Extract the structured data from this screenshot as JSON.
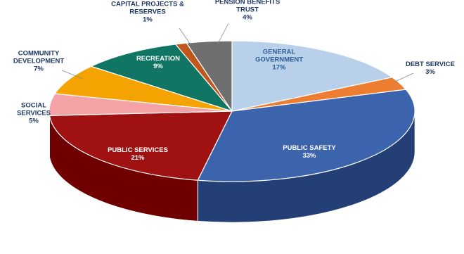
{
  "chart_data": {
    "type": "pie",
    "style": "3d",
    "slices": [
      {
        "name": "GENERAL GOVERNMENT",
        "value": 17,
        "label_lines": [
          "GENERAL",
          "GOVERNMENT"
        ],
        "value_label": "17%",
        "color": "#b8d0ea",
        "side_color": "#8aa2bd",
        "label_color": "#2f5f93"
      },
      {
        "name": "DEBT SERVICE",
        "value": 3,
        "label_lines": [
          "DEBT SERVICE"
        ],
        "value_label": "3%",
        "color": "#ed7d31",
        "side_color": "#b55e22",
        "label_color": "#1f3864"
      },
      {
        "name": "PUBLIC SAFETY",
        "value": 33,
        "label_lines": [
          "PUBLIC SAFETY"
        ],
        "value_label": "33%",
        "color": "#3c64ad",
        "side_color": "#233f75",
        "label_color": "#ffffff"
      },
      {
        "name": "PUBLIC SERVICES",
        "value": 21,
        "label_lines": [
          "PUBLIC SERVICES"
        ],
        "value_label": "21%",
        "color": "#a01212",
        "side_color": "#700000",
        "label_color": "#ffffff"
      },
      {
        "name": "SOCIAL SERVICES",
        "value": 5,
        "label_lines": [
          "SOCIAL",
          "SERVICES"
        ],
        "value_label": "5%",
        "color": "#f3a3a5",
        "side_color": "#c37678",
        "label_color": "#1f3864"
      },
      {
        "name": "COMMUNITY DEVELOPMENT",
        "value": 7,
        "label_lines": [
          "COMMUNITY",
          "DEVELOPMENT"
        ],
        "value_label": "7%",
        "color": "#f5a300",
        "side_color": "#c07f00",
        "label_color": "#1f3864"
      },
      {
        "name": "RECREATION",
        "value": 9,
        "label_lines": [
          "RECREATION"
        ],
        "value_label": "9%",
        "color": "#117564",
        "side_color": "#0b5145",
        "label_color": "#ffffff"
      },
      {
        "name": "CAPITAL PROJECTS & RESERVES",
        "value": 1,
        "label_lines": [
          "CAPITAL PROJECTS &",
          "RESERVES"
        ],
        "value_label": "1%",
        "color": "#c0571d",
        "side_color": "#8c3e12",
        "label_color": "#1f3864"
      },
      {
        "name": "PENSION BENEFITS TRUST",
        "value": 4,
        "label_lines": [
          "PENSION BENEFITS",
          "TRUST"
        ],
        "value_label": "4%",
        "color": "#6f6f6f",
        "side_color": "#4a4a4a",
        "label_color": "#1f3864"
      }
    ]
  }
}
